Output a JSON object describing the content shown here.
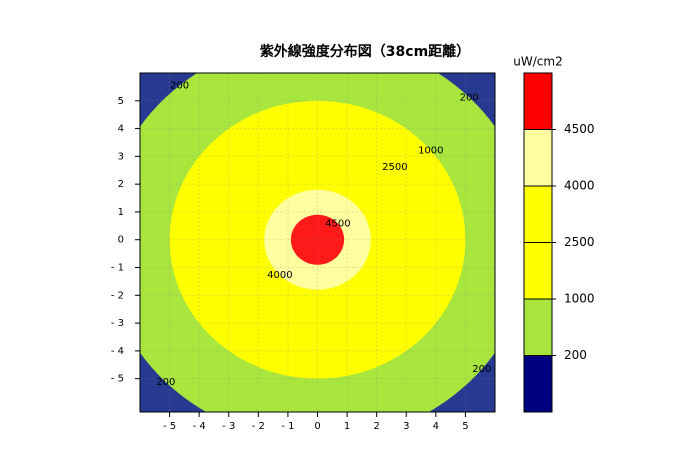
{
  "chart_data": {
    "type": "contour",
    "title": "紫外線強度分布図（38cm距離）",
    "colorbar_label": "uW/cm2",
    "levels": [
      200,
      1000,
      2500,
      4000,
      4500
    ],
    "radii": [
      7.25,
      5.0,
      3.7,
      1.8,
      0.9
    ],
    "colors": [
      "#263a92",
      "#a8e63e",
      "#ffff00",
      "#ffff00",
      "#ffffa0",
      "#ff1a1a"
    ],
    "colorbar_colors": [
      "#000080",
      "#a8e63e",
      "#ffff00",
      "#ffff00",
      "#ffffa0",
      "#ff0000"
    ],
    "xlim": [
      -6,
      6
    ],
    "ylim": [
      -6.2,
      6
    ],
    "xticks": [
      {
        "value": -5,
        "label": "- 5"
      },
      {
        "value": -4,
        "label": "- 4"
      },
      {
        "value": -3,
        "label": "- 3"
      },
      {
        "value": -2,
        "label": "- 2"
      },
      {
        "value": -1,
        "label": "- 1"
      },
      0,
      1,
      2,
      3,
      4,
      5
    ],
    "yticks": [
      {
        "value": -5,
        "label": "- 5"
      },
      {
        "value": -4,
        "label": "- 4"
      },
      {
        "value": -3,
        "label": "- 3"
      },
      {
        "value": -2,
        "label": "- 2"
      },
      {
        "value": -1,
        "label": "- 1"
      },
      0,
      1,
      2,
      3,
      4,
      5
    ],
    "grid": true
  }
}
